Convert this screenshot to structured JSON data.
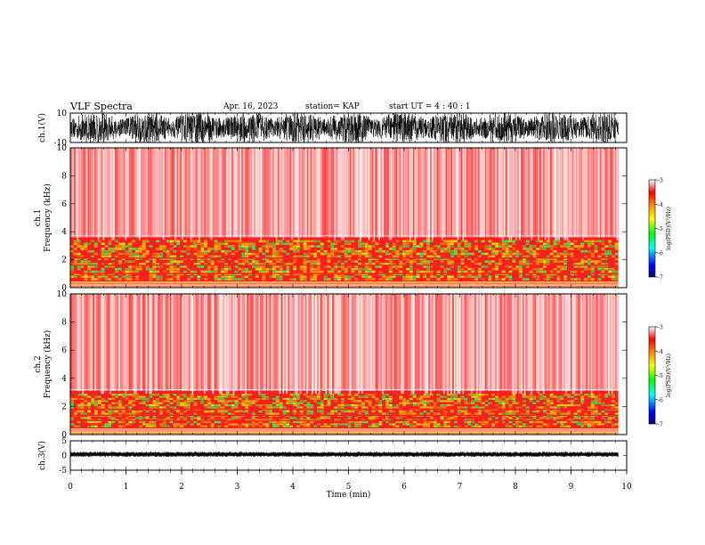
{
  "header": {
    "title": "VLF Spectra",
    "date": "Apr. 16, 2023",
    "station": "station= KAP",
    "start": "start  UT =   4 : 40 : 1"
  },
  "chart_data": [
    {
      "panel": "ch1-waveform",
      "type": "line",
      "ylabel": "ch.1(V)",
      "ylim": [
        -10,
        10
      ],
      "yticks": [
        "10",
        "-10"
      ],
      "x_end_min": 9.85,
      "description_values": {
        "typical_range": [
          -10,
          10
        ]
      }
    },
    {
      "panel": "ch1-spectrogram",
      "type": "heatmap",
      "ylabel_top": "ch.1",
      "ylabel": "Frequency  (kHz)",
      "ylim": [
        0,
        10
      ],
      "yticks": [
        "0",
        "2",
        "4",
        "6",
        "8",
        "10"
      ],
      "band_top_khz": 3.4,
      "colorbar": {
        "label": "log(PSD)(V²/Hz)",
        "range": [
          -7,
          -3
        ],
        "ticks": [
          "-3",
          "-4",
          "-5",
          "-6",
          "-7"
        ]
      }
    },
    {
      "panel": "ch2-spectrogram",
      "type": "heatmap",
      "ylabel_top": "ch.2",
      "ylabel": "Frequency  (kHz)",
      "ylim": [
        0,
        10
      ],
      "yticks": [
        "0",
        "2",
        "4",
        "6",
        "8",
        "10"
      ],
      "band_top_khz": 2.9,
      "colorbar": {
        "label": "log(PSD)(V²/Hz)",
        "range": [
          -7,
          -3
        ],
        "ticks": [
          "-3",
          "-4",
          "-5",
          "-6",
          "-7"
        ]
      }
    },
    {
      "panel": "ch3-waveform",
      "type": "line",
      "ylabel": "ch.3(V)",
      "ylim": [
        -5,
        5
      ],
      "yticks": [
        "5",
        "0",
        "-5"
      ],
      "x_end_min": 9.85,
      "xlabel": "Time  (min)",
      "xlim": [
        0,
        10
      ],
      "xticks": [
        "0",
        "1",
        "2",
        "3",
        "4",
        "5",
        "6",
        "7",
        "8",
        "9",
        "10"
      ]
    }
  ]
}
